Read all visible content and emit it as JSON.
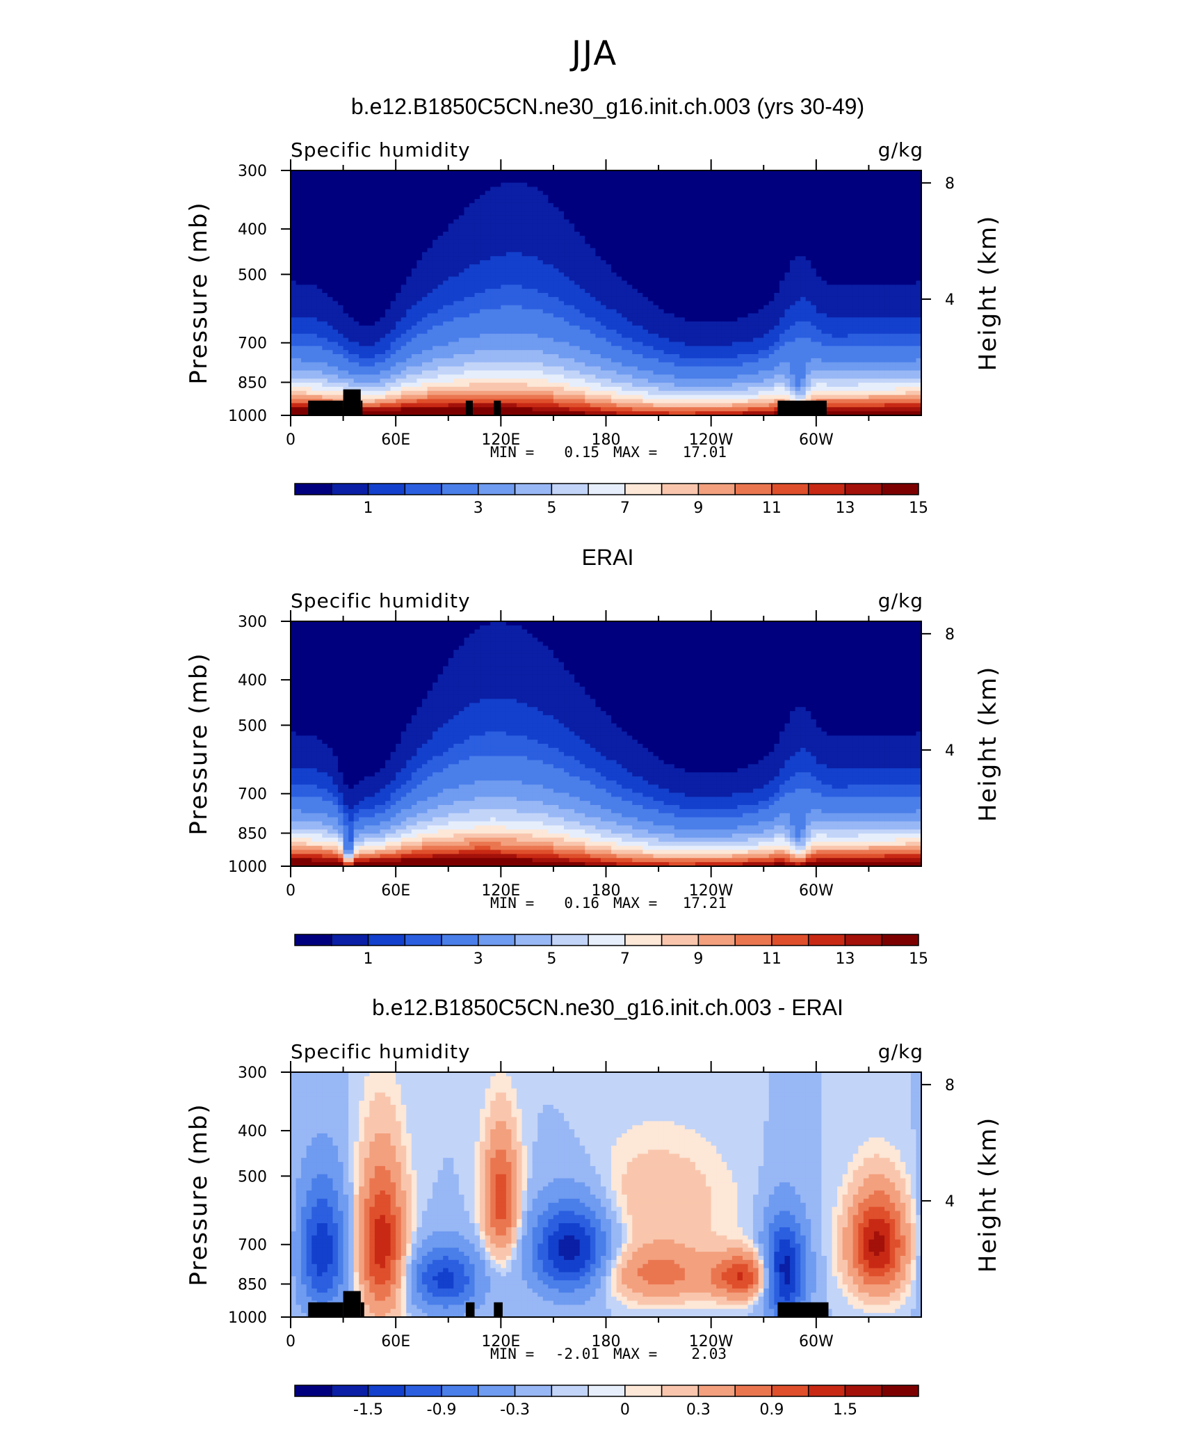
{
  "figure_title": "JJA",
  "colors": {
    "humidity_scale": [
      "#00007f",
      "#0a1fa5",
      "#1340cc",
      "#2b5fe0",
      "#4a7ee9",
      "#6f9bf0",
      "#98b7f5",
      "#c2d4f8",
      "#e6eefc",
      "#fde7d7",
      "#f9c6ad",
      "#f3a07e",
      "#ea7650",
      "#df4f2b",
      "#c82914",
      "#a3110a",
      "#7d0000"
    ],
    "difference_scale": [
      "#00007f",
      "#0a1fa5",
      "#1340cc",
      "#2b5fe0",
      "#4a7ee9",
      "#6f9bf0",
      "#98b7f5",
      "#c2d4f8",
      "#e6eefc",
      "#fde7d7",
      "#f9c6ad",
      "#f3a07e",
      "#ea7650",
      "#df4f2b",
      "#c82914",
      "#a3110a",
      "#7d0000"
    ],
    "topography": "#000000"
  },
  "chart_data": [
    {
      "type": "heatmap",
      "title": "b.e12.B1850C5CN.ne30_g16.init.ch.003 (yrs 30-49)",
      "left_label": "Specific humidity",
      "right_label": "g/kg",
      "ylabel": "Pressure (mb)",
      "right_ylabel": "Height (km)",
      "y_ticks": [
        "300",
        "400",
        "500",
        "700",
        "850",
        "1000"
      ],
      "y_tick_values": [
        300,
        400,
        500,
        700,
        850,
        1000
      ],
      "right_ticks": [
        "8",
        "4"
      ],
      "right_tick_values": [
        8,
        4
      ],
      "x_ticks": [
        "0",
        "60E",
        "120E",
        "180",
        "120W",
        "60W"
      ],
      "x_tick_values": [
        0,
        60,
        120,
        180,
        240,
        300
      ],
      "xlim": [
        0,
        360
      ],
      "ylim": [
        1000,
        300
      ],
      "y_scale": "log",
      "min_label": "MIN =",
      "min": "0.15",
      "max_label": "MAX =",
      "max": "17.01",
      "colorbar_ticks": [
        "1",
        "3",
        "5",
        "7",
        "9",
        "11",
        "13",
        "15"
      ],
      "colorbar_levels": [
        0.5,
        1,
        1.5,
        2,
        3,
        4,
        5,
        6,
        7,
        8,
        9,
        10,
        11,
        12,
        13,
        14,
        15,
        16
      ],
      "topography": [
        [
          10,
          30,
          930
        ],
        [
          30,
          40,
          880
        ],
        [
          40,
          41,
          930
        ],
        [
          100,
          104,
          930
        ],
        [
          116,
          120,
          930
        ],
        [
          278,
          306,
          930
        ]
      ]
    },
    {
      "type": "heatmap",
      "title": "ERAI",
      "left_label": "Specific humidity",
      "right_label": "g/kg",
      "ylabel": "Pressure (mb)",
      "right_ylabel": "Height (km)",
      "y_ticks": [
        "300",
        "400",
        "500",
        "700",
        "850",
        "1000"
      ],
      "y_tick_values": [
        300,
        400,
        500,
        700,
        850,
        1000
      ],
      "right_ticks": [
        "8",
        "4"
      ],
      "right_tick_values": [
        8,
        4
      ],
      "x_ticks": [
        "0",
        "60E",
        "120E",
        "180",
        "120W",
        "60W"
      ],
      "x_tick_values": [
        0,
        60,
        120,
        180,
        240,
        300
      ],
      "xlim": [
        0,
        360
      ],
      "ylim": [
        1000,
        300
      ],
      "y_scale": "log",
      "min_label": "MIN =",
      "min": "0.16",
      "max_label": "MAX =",
      "max": "17.21",
      "colorbar_ticks": [
        "1",
        "3",
        "5",
        "7",
        "9",
        "11",
        "13",
        "15"
      ],
      "colorbar_levels": [
        0.5,
        1,
        1.5,
        2,
        3,
        4,
        5,
        6,
        7,
        8,
        9,
        10,
        11,
        12,
        13,
        14,
        15,
        16
      ],
      "topography": []
    },
    {
      "type": "heatmap",
      "title": "b.e12.B1850C5CN.ne30_g16.init.ch.003 - ERAI",
      "left_label": "Specific humidity",
      "right_label": "g/kg",
      "ylabel": "Pressure (mb)",
      "right_ylabel": "Height (km)",
      "y_ticks": [
        "300",
        "400",
        "500",
        "700",
        "850",
        "1000"
      ],
      "y_tick_values": [
        300,
        400,
        500,
        700,
        850,
        1000
      ],
      "right_ticks": [
        "8",
        "4"
      ],
      "right_tick_values": [
        8,
        4
      ],
      "x_ticks": [
        "0",
        "60E",
        "120E",
        "180",
        "120W",
        "60W"
      ],
      "x_tick_values": [
        0,
        60,
        120,
        180,
        240,
        300
      ],
      "xlim": [
        0,
        360
      ],
      "ylim": [
        1000,
        300
      ],
      "y_scale": "log",
      "min_label": "MIN =",
      "min": "-2.01",
      "max_label": "MAX =",
      "max": "2.03",
      "colorbar_ticks": [
        "-1.5",
        "-0.9",
        "-0.3",
        "0",
        "0.3",
        "0.9",
        "1.5"
      ],
      "colorbar_levels": [
        -1.8,
        -1.5,
        -1.2,
        -0.9,
        -0.6,
        -0.3,
        -0.1,
        0,
        0.1,
        0.3,
        0.6,
        0.9,
        1.2,
        1.5,
        1.8
      ],
      "topography": [
        [
          10,
          30,
          930
        ],
        [
          30,
          40,
          880
        ],
        [
          40,
          42,
          930
        ],
        [
          100,
          105,
          930
        ],
        [
          116,
          121,
          930
        ],
        [
          278,
          307,
          930
        ]
      ]
    }
  ]
}
